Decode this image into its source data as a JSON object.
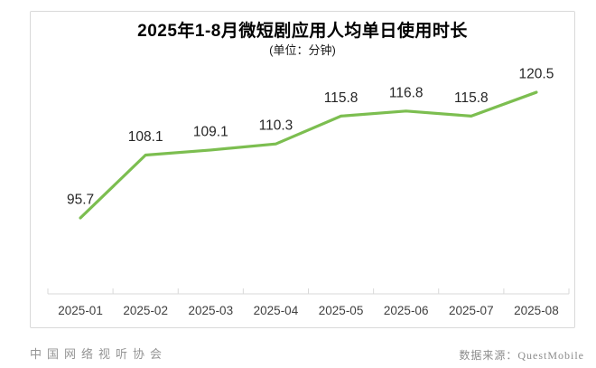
{
  "chart": {
    "title": "2025年1-8月微短剧应用人均单日使用时长",
    "subtitle": "(单位：分钟)"
  },
  "chart_data": {
    "type": "line",
    "title": "2025年1-8月微短剧应用人均单日使用时长",
    "subtitle": "(单位：分钟)",
    "unit": "分钟",
    "categories": [
      "2025-01",
      "2025-02",
      "2025-03",
      "2025-04",
      "2025-05",
      "2025-06",
      "2025-07",
      "2025-08"
    ],
    "values": [
      95.7,
      108.1,
      109.1,
      110.3,
      115.8,
      116.8,
      115.8,
      120.5
    ],
    "data_labels": [
      "95.7",
      "108.1",
      "109.1",
      "110.3",
      "115.8",
      "116.8",
      "115.8",
      "120.5"
    ],
    "xlabel": "",
    "ylabel": "",
    "ylim": [
      80.7,
      136.4
    ],
    "grid": false,
    "legend": "none",
    "line_color": "#7cbe50",
    "axis_color": "#d9d9d9",
    "value_label_color": "#262626",
    "x_label_color": "#404040"
  },
  "footer": {
    "left": "中国网络视听协会",
    "right": "数据来源：QuestMobile"
  }
}
